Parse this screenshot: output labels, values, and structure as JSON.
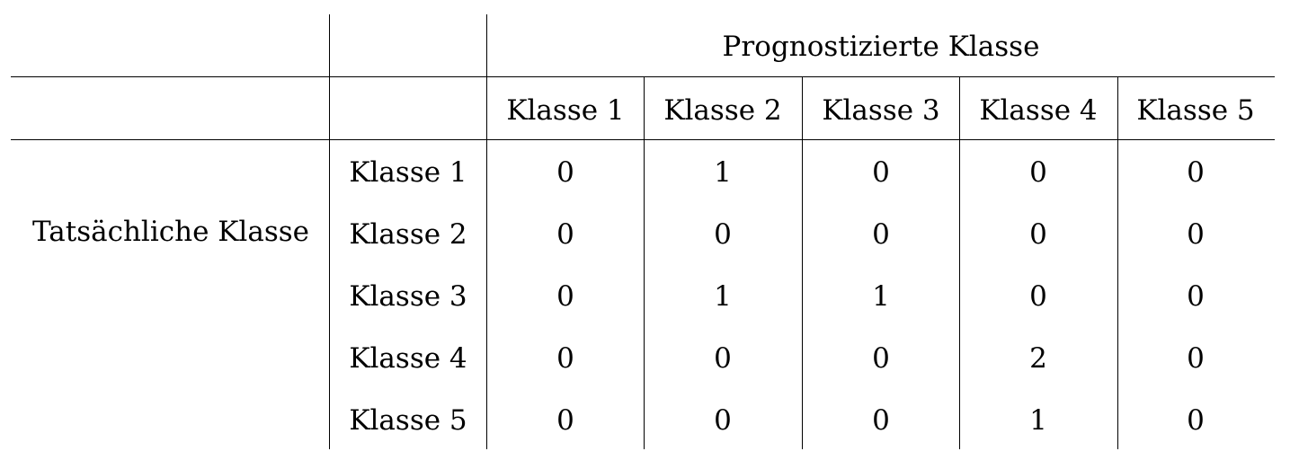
{
  "table": {
    "group_header": "Prognostizierte Klasse",
    "row_group_label": "Tatsächliche Klasse",
    "columns": [
      "Klasse 1",
      "Klasse 2",
      "Klasse 3",
      "Klasse 4",
      "Klasse 5"
    ],
    "rows": [
      {
        "label": "Klasse 1",
        "values": [
          "0",
          "1",
          "0",
          "0",
          "0"
        ]
      },
      {
        "label": "Klasse 2",
        "values": [
          "0",
          "0",
          "0",
          "0",
          "0"
        ]
      },
      {
        "label": "Klasse 3",
        "values": [
          "0",
          "1",
          "1",
          "0",
          "0"
        ]
      },
      {
        "label": "Klasse 4",
        "values": [
          "0",
          "0",
          "0",
          "2",
          "0"
        ]
      },
      {
        "label": "Klasse 5",
        "values": [
          "0",
          "0",
          "0",
          "1",
          "0"
        ]
      }
    ]
  }
}
